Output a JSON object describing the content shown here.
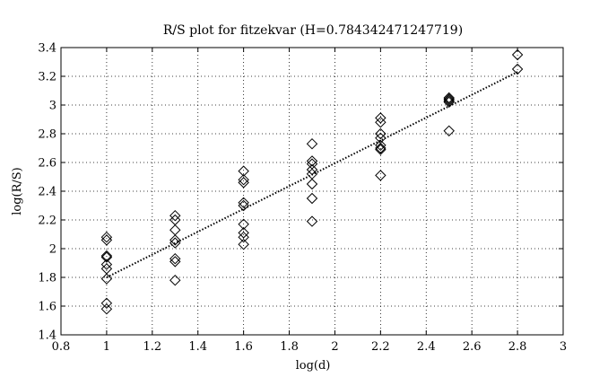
{
  "chart_data": {
    "type": "scatter",
    "title": "R/S plot for fitzekvar (H=0.784342471247719)",
    "xlabel": "log(d)",
    "ylabel": "log(R/S)",
    "xlim": [
      0.8,
      3.0
    ],
    "ylim": [
      1.4,
      3.4
    ],
    "xticks": [
      0.8,
      1.0,
      1.2,
      1.4,
      1.6,
      1.8,
      2.0,
      2.2,
      2.4,
      2.6,
      2.8,
      3.0
    ],
    "xtick_labels": [
      "0.8",
      "1",
      "1.2",
      "1.4",
      "1.6",
      "1.8",
      "2",
      "2.2",
      "2.4",
      "2.6",
      "2.8",
      "3"
    ],
    "yticks": [
      1.4,
      1.6,
      1.8,
      2.0,
      2.2,
      2.4,
      2.6,
      2.8,
      3.0,
      3.2,
      3.4
    ],
    "ytick_labels": [
      "1.4",
      "1.6",
      "1.8",
      "2",
      "2.2",
      "2.4",
      "2.6",
      "2.8",
      "3",
      "3.2",
      "3.4"
    ],
    "grid": true,
    "marker": "diamond",
    "points": [
      {
        "x": 1.0,
        "y": 2.08
      },
      {
        "x": 1.0,
        "y": 2.06
      },
      {
        "x": 1.0,
        "y": 1.95
      },
      {
        "x": 1.0,
        "y": 1.94
      },
      {
        "x": 1.0,
        "y": 1.89
      },
      {
        "x": 1.0,
        "y": 1.86
      },
      {
        "x": 1.0,
        "y": 1.79
      },
      {
        "x": 1.0,
        "y": 1.62
      },
      {
        "x": 1.0,
        "y": 1.58
      },
      {
        "x": 1.3,
        "y": 2.23
      },
      {
        "x": 1.3,
        "y": 2.2
      },
      {
        "x": 1.3,
        "y": 2.13
      },
      {
        "x": 1.3,
        "y": 2.06
      },
      {
        "x": 1.3,
        "y": 2.04
      },
      {
        "x": 1.3,
        "y": 1.93
      },
      {
        "x": 1.3,
        "y": 1.91
      },
      {
        "x": 1.3,
        "y": 1.78
      },
      {
        "x": 1.6,
        "y": 2.54
      },
      {
        "x": 1.6,
        "y": 2.48
      },
      {
        "x": 1.6,
        "y": 2.46
      },
      {
        "x": 1.6,
        "y": 2.32
      },
      {
        "x": 1.6,
        "y": 2.3
      },
      {
        "x": 1.6,
        "y": 2.17
      },
      {
        "x": 1.6,
        "y": 2.11
      },
      {
        "x": 1.6,
        "y": 2.08
      },
      {
        "x": 1.6,
        "y": 2.03
      },
      {
        "x": 1.9,
        "y": 2.73
      },
      {
        "x": 1.9,
        "y": 2.61
      },
      {
        "x": 1.9,
        "y": 2.59
      },
      {
        "x": 1.9,
        "y": 2.55
      },
      {
        "x": 1.9,
        "y": 2.52
      },
      {
        "x": 1.9,
        "y": 2.45
      },
      {
        "x": 1.9,
        "y": 2.35
      },
      {
        "x": 1.9,
        "y": 2.19
      },
      {
        "x": 2.2,
        "y": 2.91
      },
      {
        "x": 2.2,
        "y": 2.88
      },
      {
        "x": 2.2,
        "y": 2.8
      },
      {
        "x": 2.2,
        "y": 2.77
      },
      {
        "x": 2.2,
        "y": 2.72
      },
      {
        "x": 2.2,
        "y": 2.7
      },
      {
        "x": 2.2,
        "y": 2.69
      },
      {
        "x": 2.2,
        "y": 2.51
      },
      {
        "x": 2.5,
        "y": 3.05
      },
      {
        "x": 2.5,
        "y": 3.04
      },
      {
        "x": 2.5,
        "y": 3.03
      },
      {
        "x": 2.5,
        "y": 3.02
      },
      {
        "x": 2.5,
        "y": 2.82
      },
      {
        "x": 2.8,
        "y": 3.35
      },
      {
        "x": 2.8,
        "y": 3.25
      }
    ],
    "fit_line": {
      "x": [
        1.0,
        2.8
      ],
      "y": [
        1.8,
        3.23
      ]
    }
  }
}
